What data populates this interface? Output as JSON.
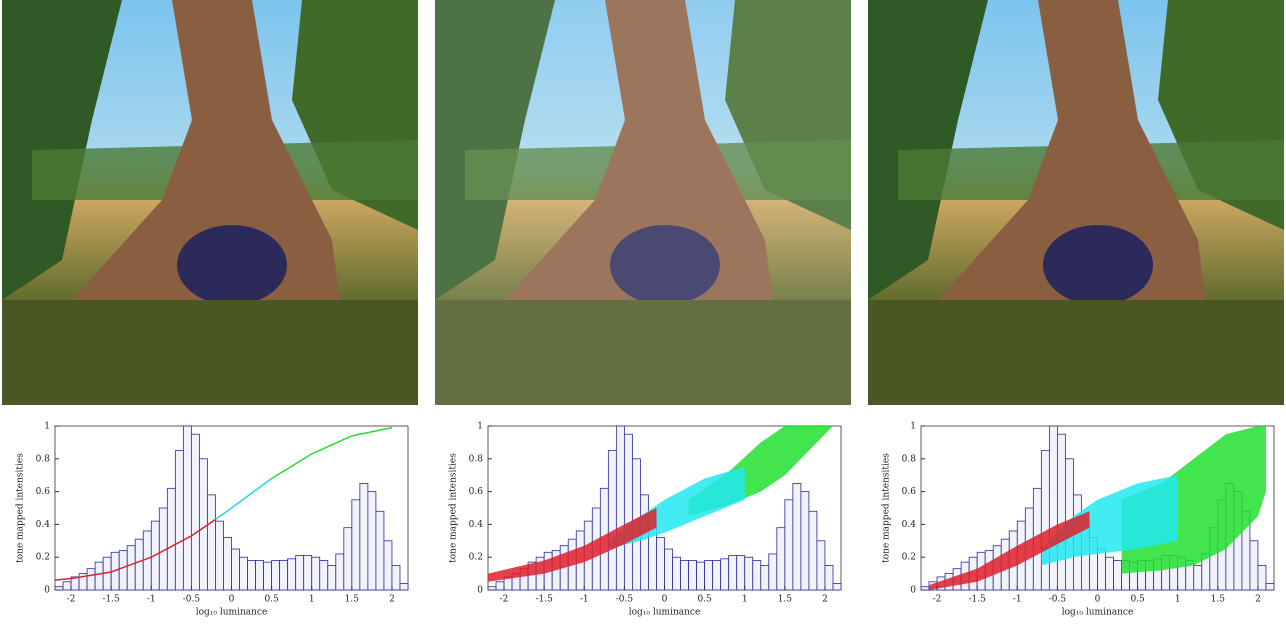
{
  "chart_data": [
    {
      "type": "histogram",
      "xlabel": "log₁₀ luminance",
      "ylabel": "tone mapped intensities",
      "xlim": [
        -2.2,
        2.2
      ],
      "ylim": [
        0,
        1
      ],
      "xticks": [
        -2,
        -1.5,
        -1,
        -0.5,
        0,
        0.5,
        1,
        1.5,
        2
      ],
      "yticks": [
        0,
        0.2,
        0.4,
        0.6,
        0.8,
        1
      ],
      "hist_color": "#2b2b9c",
      "bins": [
        -2.2,
        -2.1,
        -2.0,
        -1.9,
        -1.8,
        -1.7,
        -1.6,
        -1.5,
        -1.4,
        -1.3,
        -1.2,
        -1.1,
        -1.0,
        -0.9,
        -0.8,
        -0.7,
        -0.6,
        -0.5,
        -0.4,
        -0.3,
        -0.2,
        -0.1,
        0,
        0.1,
        0.2,
        0.3,
        0.4,
        0.5,
        0.6,
        0.7,
        0.8,
        0.9,
        1.0,
        1.1,
        1.2,
        1.3,
        1.4,
        1.5,
        1.6,
        1.7,
        1.8,
        1.9,
        2.0,
        2.1,
        2.2
      ],
      "counts": [
        0.02,
        0.05,
        0.08,
        0.1,
        0.13,
        0.17,
        0.2,
        0.23,
        0.24,
        0.27,
        0.31,
        0.36,
        0.42,
        0.5,
        0.62,
        0.85,
        1.0,
        0.95,
        0.8,
        0.58,
        0.42,
        0.32,
        0.25,
        0.2,
        0.18,
        0.18,
        0.17,
        0.18,
        0.18,
        0.19,
        0.21,
        0.21,
        0.2,
        0.18,
        0.15,
        0.22,
        0.38,
        0.55,
        0.65,
        0.6,
        0.48,
        0.3,
        0.15,
        0.04
      ],
      "series": [
        {
          "color": "#e0202a",
          "x": [
            -2.2,
            -2,
            -1.5,
            -1,
            -0.5,
            -0.2
          ],
          "values": [
            0.06,
            0.07,
            0.11,
            0.2,
            0.33,
            0.43
          ]
        },
        {
          "color": "#22d8e0",
          "x": [
            -0.2,
            0,
            0.5
          ],
          "values": [
            0.43,
            0.5,
            0.68
          ]
        },
        {
          "color": "#22e030",
          "x": [
            0.5,
            1,
            1.5,
            2
          ],
          "values": [
            0.68,
            0.83,
            0.94,
            0.99
          ]
        }
      ]
    },
    {
      "type": "histogram",
      "xlabel": "log₁₀ luminance",
      "ylabel": "tone mapped intensities",
      "xlim": [
        -2.2,
        2.2
      ],
      "ylim": [
        0,
        1
      ],
      "xticks": [
        -2,
        -1.5,
        -1,
        -0.5,
        0,
        0.5,
        1,
        1.5,
        2
      ],
      "yticks": [
        0,
        0.2,
        0.4,
        0.6,
        0.8,
        1
      ],
      "hist_color": "#2b2b9c",
      "bins": [
        -2.2,
        -2.1,
        -2.0,
        -1.9,
        -1.8,
        -1.7,
        -1.6,
        -1.5,
        -1.4,
        -1.3,
        -1.2,
        -1.1,
        -1.0,
        -0.9,
        -0.8,
        -0.7,
        -0.6,
        -0.5,
        -0.4,
        -0.3,
        -0.2,
        -0.1,
        0,
        0.1,
        0.2,
        0.3,
        0.4,
        0.5,
        0.6,
        0.7,
        0.8,
        0.9,
        1.0,
        1.1,
        1.2,
        1.3,
        1.4,
        1.5,
        1.6,
        1.7,
        1.8,
        1.9,
        2.0,
        2.1,
        2.2
      ],
      "counts": [
        0.02,
        0.05,
        0.08,
        0.1,
        0.13,
        0.17,
        0.2,
        0.23,
        0.24,
        0.27,
        0.31,
        0.36,
        0.42,
        0.5,
        0.62,
        0.85,
        1.0,
        0.95,
        0.8,
        0.58,
        0.42,
        0.32,
        0.25,
        0.2,
        0.18,
        0.18,
        0.17,
        0.18,
        0.18,
        0.19,
        0.21,
        0.21,
        0.2,
        0.18,
        0.15,
        0.22,
        0.38,
        0.55,
        0.65,
        0.6,
        0.48,
        0.3,
        0.15,
        0.04
      ],
      "bands": [
        {
          "color": "#22e030",
          "x": [
            0.3,
            0.8,
            1.2,
            1.5,
            2.1
          ],
          "low": [
            0.45,
            0.52,
            0.6,
            0.7,
            1
          ],
          "high": [
            0.55,
            0.72,
            0.9,
            1,
            1
          ]
        },
        {
          "color": "#22e8f0",
          "x": [
            -0.7,
            -0.3,
            0,
            0.5,
            1
          ],
          "low": [
            0.25,
            0.3,
            0.35,
            0.45,
            0.55
          ],
          "high": [
            0.3,
            0.45,
            0.55,
            0.68,
            0.75
          ]
        },
        {
          "color": "#e0202a",
          "x": [
            -2.2,
            -1.5,
            -1,
            -0.5,
            -0.1
          ],
          "low": [
            0.05,
            0.1,
            0.17,
            0.28,
            0.38
          ],
          "high": [
            0.1,
            0.18,
            0.27,
            0.4,
            0.5
          ]
        }
      ]
    },
    {
      "type": "histogram",
      "xlabel": "log₁₀ luminance",
      "ylabel": "tone mapped intensities",
      "xlim": [
        -2.2,
        2.2
      ],
      "ylim": [
        0,
        1
      ],
      "xticks": [
        -2,
        -1.5,
        -1,
        -0.5,
        0,
        0.5,
        1,
        1.5,
        2
      ],
      "yticks": [
        0,
        0.2,
        0.4,
        0.6,
        0.8,
        1
      ],
      "hist_color": "#2b2b9c",
      "bins": [
        -2.2,
        -2.1,
        -2.0,
        -1.9,
        -1.8,
        -1.7,
        -1.6,
        -1.5,
        -1.4,
        -1.3,
        -1.2,
        -1.1,
        -1.0,
        -0.9,
        -0.8,
        -0.7,
        -0.6,
        -0.5,
        -0.4,
        -0.3,
        -0.2,
        -0.1,
        0,
        0.1,
        0.2,
        0.3,
        0.4,
        0.5,
        0.6,
        0.7,
        0.8,
        0.9,
        1.0,
        1.1,
        1.2,
        1.3,
        1.4,
        1.5,
        1.6,
        1.7,
        1.8,
        1.9,
        2.0,
        2.1,
        2.2
      ],
      "counts": [
        0.02,
        0.05,
        0.08,
        0.1,
        0.13,
        0.17,
        0.2,
        0.23,
        0.24,
        0.27,
        0.31,
        0.36,
        0.42,
        0.5,
        0.62,
        0.85,
        1.0,
        0.95,
        0.8,
        0.58,
        0.42,
        0.32,
        0.25,
        0.2,
        0.18,
        0.18,
        0.17,
        0.18,
        0.18,
        0.19,
        0.21,
        0.21,
        0.2,
        0.18,
        0.15,
        0.22,
        0.38,
        0.55,
        0.65,
        0.6,
        0.48,
        0.3,
        0.15,
        0.04
      ],
      "bands": [
        {
          "color": "#22e030",
          "x": [
            0.3,
            0.8,
            1.2,
            1.6,
            2,
            2.1
          ],
          "low": [
            0.1,
            0.12,
            0.15,
            0.25,
            0.45,
            0.6
          ],
          "high": [
            0.55,
            0.65,
            0.8,
            0.95,
            1,
            1
          ]
        },
        {
          "color": "#22e8f0",
          "x": [
            -0.7,
            -0.3,
            0,
            0.5,
            1
          ],
          "low": [
            0.15,
            0.2,
            0.22,
            0.25,
            0.3
          ],
          "high": [
            0.25,
            0.45,
            0.55,
            0.65,
            0.7
          ]
        },
        {
          "color": "#e0202a",
          "x": [
            -2.1,
            -1.5,
            -1,
            -0.5,
            -0.1
          ],
          "low": [
            0,
            0.05,
            0.15,
            0.28,
            0.38
          ],
          "high": [
            0.03,
            0.13,
            0.27,
            0.4,
            0.48
          ]
        }
      ]
    }
  ]
}
